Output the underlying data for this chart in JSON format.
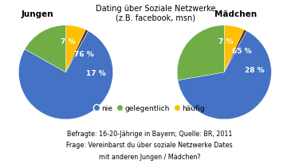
{
  "title": "Dating über Soziale Netzwerke\n(z.B. facebook, msn)",
  "left_label": "Jungen",
  "right_label": "Mädchen",
  "jungen_values": [
    76,
    17,
    7,
    1
  ],
  "maedchen_values": [
    65,
    28,
    7,
    1
  ],
  "colors": [
    "#4472C4",
    "#70AD47",
    "#FFC000",
    "#5C3317"
  ],
  "legend_labels": [
    "nie",
    "gelegentlich",
    "häufig"
  ],
  "legend_colors": [
    "#4472C4",
    "#70AD47",
    "#FFC000"
  ],
  "footnote_line1": "Befragte: 16-20-Jährige in Bayern; Quelle: BR, 2011",
  "footnote_line2": "Frage: Vereinbarst du über soziale Netzwerke Dates",
  "footnote_line3": "mit anderen Jungen / Mädchen?",
  "bg_color": "#FFFFFF",
  "text_color": "#000000",
  "jungen_pct_labels": [
    "76 %",
    "17 %",
    "7 %"
  ],
  "maedchen_pct_labels": [
    "65 %",
    "28 %",
    "7 %"
  ]
}
